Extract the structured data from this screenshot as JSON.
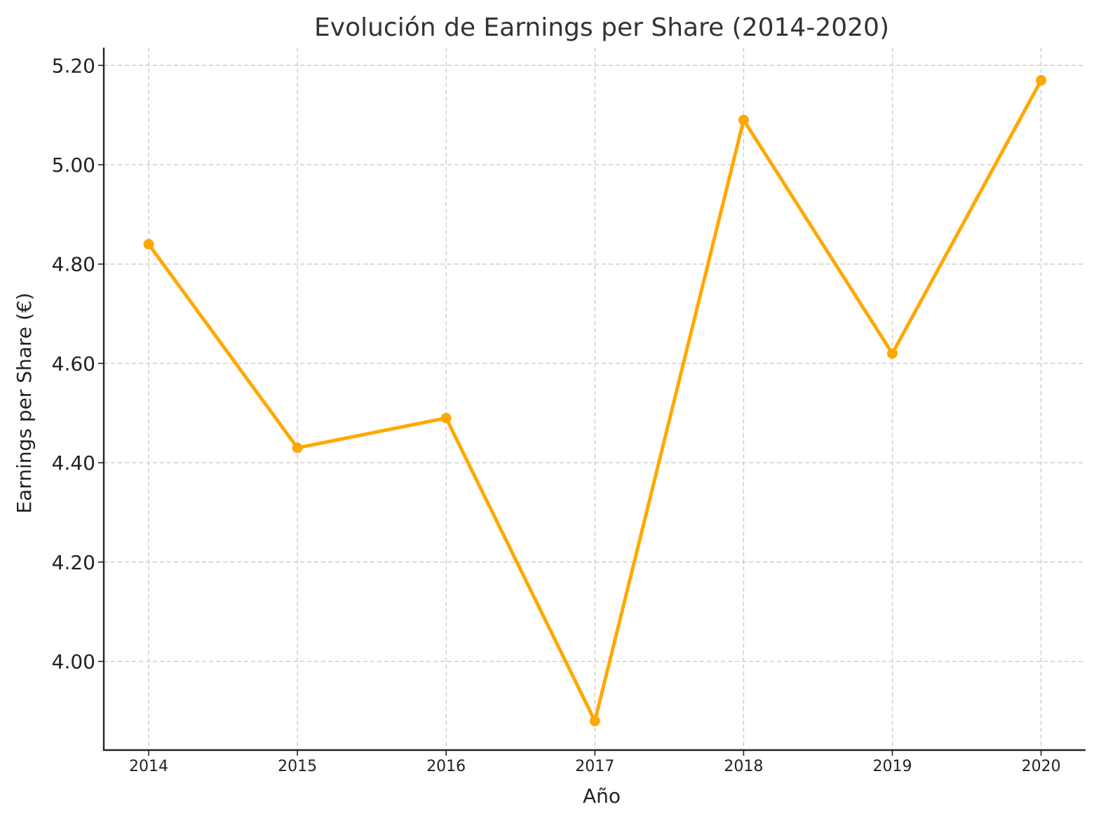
{
  "chart_data": {
    "type": "line",
    "title": "Evolución de Earnings per Share (2014-2020)",
    "xlabel": "Año",
    "ylabel": "Earnings per Share (€)",
    "x": [
      "2014",
      "2015",
      "2016",
      "2017",
      "2018",
      "2019",
      "2020"
    ],
    "series": [
      {
        "values": [
          4.84,
          4.43,
          4.49,
          3.88,
          5.09,
          4.62,
          5.17
        ]
      }
    ],
    "yticks": [
      "4.00",
      "4.20",
      "4.40",
      "4.60",
      "4.80",
      "5.00",
      "5.20"
    ],
    "ylim": [
      3.82,
      5.24
    ],
    "grid": true,
    "line_color": "#FFA800",
    "marker": "circle"
  }
}
